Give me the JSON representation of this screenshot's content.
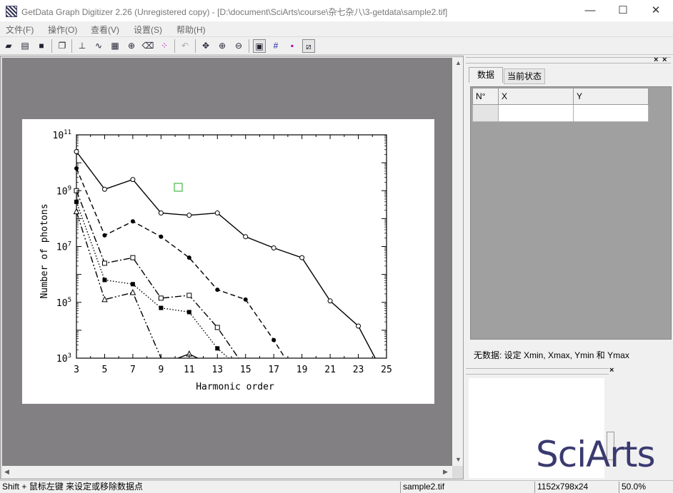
{
  "window": {
    "title": "GetData Graph Digitizer 2.26 (Unregistered copy) - [D:\\document\\SciArts\\course\\杂七杂八\\3-getdata\\sample2.tif]",
    "minimize": "—",
    "maximize": "☐",
    "close": "✕"
  },
  "menu": [
    "文件(F)",
    "操作(O)",
    "查看(V)",
    "设置(S)",
    "帮助(H)"
  ],
  "toolbar_icons": [
    "open-file-icon",
    "open-image-icon",
    "save-icon",
    "copy-icon",
    "axes-icon",
    "line-digitize-icon",
    "grid-digitize-icon",
    "point-capture-icon",
    "eraser-icon",
    "dots-icon",
    "undo-icon",
    "move-icon",
    "zoom-in-icon",
    "zoom-out-icon",
    "image-view-icon",
    "grid-view-icon",
    "points-view-icon",
    "lines-view-icon"
  ],
  "data_panel": {
    "tabs": [
      "数据",
      "当前状态"
    ],
    "columns": [
      "N°",
      "X",
      "Y"
    ],
    "status": "无数据: 设定 Xmin, Xmax, Ymin 和 Ymax"
  },
  "logo": "SciArts",
  "statusbar": {
    "hint": "Shift + 鼠标左键 来设定或移除数据点",
    "file": "sample2.tif",
    "dimensions": "1152x798x24",
    "zoom": "50.0%"
  },
  "chart_data": {
    "type": "line",
    "x_scale": "linear",
    "y_scale": "log",
    "xlabel": "Harmonic order",
    "ylabel": "Number of photons",
    "x_ticks": [
      3,
      5,
      7,
      9,
      11,
      13,
      15,
      17,
      19,
      21,
      23,
      25
    ],
    "y_ticks": [
      "10^3",
      "10^5",
      "10^7",
      "10^9",
      "10^11"
    ],
    "xlim": [
      3,
      25
    ],
    "ylim_log10": [
      3,
      11
    ],
    "series": [
      {
        "marker": "open-circle",
        "line": "solid",
        "x": [
          3,
          5,
          7,
          9,
          11,
          13,
          15,
          17,
          19,
          21,
          23,
          24.2
        ],
        "log10y": [
          10.4,
          9.05,
          9.4,
          8.2,
          8.12,
          8.2,
          7.35,
          6.95,
          6.6,
          5.05,
          4.15,
          3
        ]
      },
      {
        "marker": "filled-circle",
        "line": "dashed",
        "x": [
          3,
          5,
          7,
          9,
          11,
          13,
          15,
          17,
          17.8
        ],
        "log10y": [
          9.8,
          7.4,
          7.9,
          7.35,
          6.6,
          5.45,
          5.1,
          3.65,
          3
        ]
      },
      {
        "marker": "open-square",
        "line": "dash-dot",
        "x": [
          3,
          5,
          7,
          9,
          11,
          13,
          14.5
        ],
        "log10y": [
          9.0,
          6.4,
          6.6,
          5.15,
          5.25,
          4.1,
          3
        ]
      },
      {
        "marker": "filled-square",
        "line": "dotted",
        "x": [
          3,
          5,
          7,
          9,
          11,
          13,
          13.8
        ],
        "log10y": [
          8.6,
          5.8,
          5.65,
          4.8,
          4.65,
          3.35,
          3
        ]
      },
      {
        "marker": "open-triangle",
        "line": "dash-dot-dot",
        "x": [
          3,
          5,
          7,
          9
        ],
        "log10y": [
          8.25,
          5.1,
          5.35,
          3
        ]
      },
      {
        "marker": "open-triangle",
        "line": "solid",
        "x": [
          10.2,
          11,
          11.6
        ],
        "log10y": [
          3,
          3.15,
          3
        ]
      }
    ]
  }
}
